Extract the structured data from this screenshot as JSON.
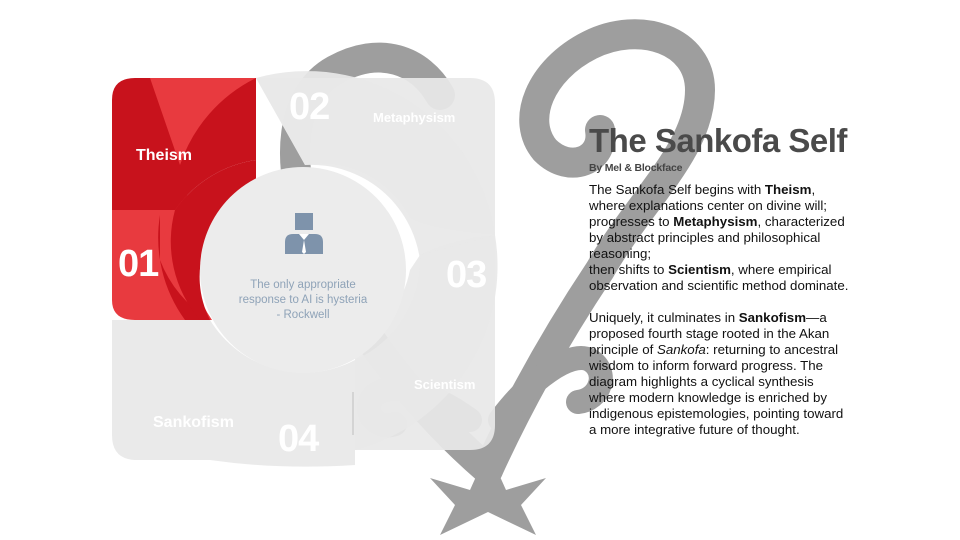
{
  "title": "The Sankofa Self",
  "byline": "By Mel & Blockface",
  "center_quote": "The only appropriate response to AI is hysteria - Rockwell",
  "stages": [
    {
      "number": "01",
      "label": "Theism",
      "color": "#d0111b"
    },
    {
      "number": "02",
      "label": "Metaphysism",
      "color": "#e8e8e8"
    },
    {
      "number": "03",
      "label": "Scientism",
      "color": "#e8e8e8"
    },
    {
      "number": "04",
      "label": "Sankofism",
      "color": "#e8e8e8"
    }
  ],
  "body": {
    "p1": {
      "t1": "The Sankofa Self begins with ",
      "b1": "Theism",
      "t2": ", where explanations center on divine will; progresses to ",
      "b2": "Metaphysism",
      "t3": ", characterized by abstract principles and philosophical reasoning;",
      "t4": "then shifts to ",
      "b3": "Scientism",
      "t5": ", where empirical observation and scientific method dominate."
    },
    "p2": {
      "t1": "Uniquely, it culminates in ",
      "b1": "Sankofism",
      "t2": "—a proposed fourth stage rooted in the Akan principle of ",
      "i1": "Sankofa",
      "t3": ": returning to ancestral wisdom to inform forward progress. The diagram highlights a cyclical synthesis where modern knowledge is enriched by indigenous epistemologies, pointing toward a more integrative future of thought."
    }
  },
  "icons": [
    "sankofa-heart-symbol-icon",
    "person-icon"
  ]
}
